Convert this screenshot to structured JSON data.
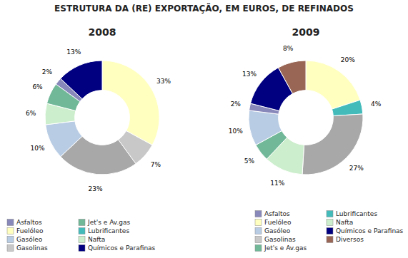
{
  "title": "ESTRUTURA DA (RE) EXPORTAÇÃO, EM EUROS, DE REFINADOS",
  "chart_data": [
    {
      "type": "donut",
      "title": "2008",
      "values": [
        33,
        7,
        23,
        10,
        6,
        6,
        2,
        13
      ],
      "value_labels": [
        "33%",
        "7%",
        "23%",
        "10%",
        "6%",
        "6%",
        "2%",
        "13%"
      ],
      "colors": [
        "#FFFFC0",
        "#C8C8C8",
        "#A8A8A8",
        "#B8CCE4",
        "#CCEECC",
        "#70B898",
        "#8888BB",
        "#000080"
      ],
      "data_labels": true,
      "legend": "lower left",
      "legend_entries": [
        {
          "name": "Asfaltos",
          "color": "#8888BB"
        },
        {
          "name": "Fuelóleo",
          "color": "#FFFFC0"
        },
        {
          "name": "Gasóleo",
          "color": "#B8CCE4"
        },
        {
          "name": "Gasolinas",
          "color": "#C8C8C8"
        },
        {
          "name": "Jet's e Av.gas",
          "color": "#70B898"
        },
        {
          "name": "Lubrificantes",
          "color": "#44BBBB"
        },
        {
          "name": "Nafta",
          "color": "#CCEECC"
        },
        {
          "name": "Químicos e Parafinas",
          "color": "#000080"
        }
      ]
    },
    {
      "type": "donut",
      "title": "2009",
      "values": [
        20,
        4,
        27,
        11,
        5,
        10,
        2,
        13,
        8
      ],
      "value_labels": [
        "20%",
        "4%",
        "27%",
        "11%",
        "5%",
        "10%",
        "2%",
        "13%",
        "8%"
      ],
      "colors": [
        "#FFFFC0",
        "#44BBBB",
        "#A8A8A8",
        "#CCEECC",
        "#70B898",
        "#B8CCE4",
        "#8888BB",
        "#000080",
        "#996655"
      ],
      "data_labels": true,
      "legend": "lower right",
      "legend_entries": [
        {
          "name": "Asfaltos",
          "color": "#8888BB"
        },
        {
          "name": "Fuelóleo",
          "color": "#FFFFC0"
        },
        {
          "name": "Gasóleo",
          "color": "#B8CCE4"
        },
        {
          "name": "Gasolinas",
          "color": "#C8C8C8"
        },
        {
          "name": "Jet's e Av.gas",
          "color": "#70B898"
        },
        {
          "name": "Lubrificantes",
          "color": "#44BBBB"
        },
        {
          "name": "Nafta",
          "color": "#CCEECC"
        },
        {
          "name": "Químicos e Parafinas",
          "color": "#000080"
        },
        {
          "name": "Diversos",
          "color": "#996655"
        }
      ]
    }
  ]
}
